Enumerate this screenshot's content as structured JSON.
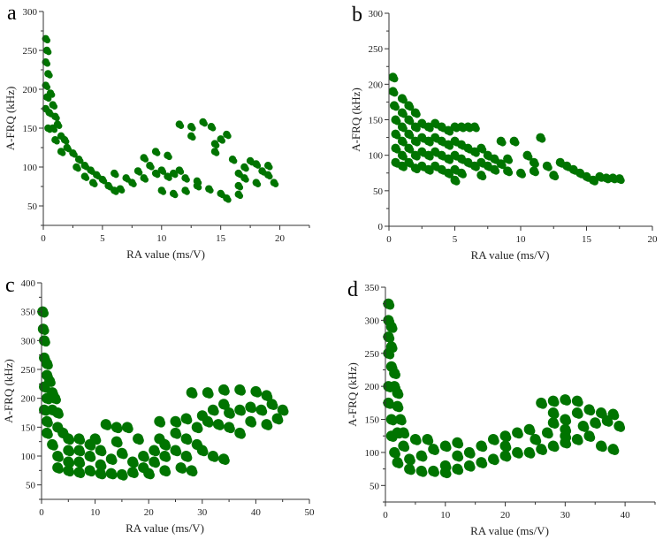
{
  "chart_data": [
    {
      "type": "scatter",
      "panel_label": "a",
      "xlabel": "RA value (ms/V)",
      "ylabel": "A-FRQ (kHz)",
      "xlim": [
        0,
        22.5
      ],
      "ylim": [
        25,
        300
      ],
      "xticks": [
        0,
        5,
        10,
        15,
        20
      ],
      "yticks": [
        50,
        100,
        150,
        200,
        250,
        300
      ],
      "grid": false,
      "color": "#007400",
      "points": [
        [
          0.2,
          265
        ],
        [
          0.3,
          250
        ],
        [
          0.2,
          235
        ],
        [
          0.4,
          220
        ],
        [
          0.2,
          205
        ],
        [
          0.3,
          190
        ],
        [
          0.6,
          195
        ],
        [
          0.2,
          175
        ],
        [
          0.5,
          170
        ],
        [
          0.8,
          180
        ],
        [
          1,
          165
        ],
        [
          0.4,
          150
        ],
        [
          0.8,
          150
        ],
        [
          1.2,
          155
        ],
        [
          1.5,
          140
        ],
        [
          1,
          135
        ],
        [
          1.8,
          135
        ],
        [
          2,
          125
        ],
        [
          1.5,
          120
        ],
        [
          2.5,
          118
        ],
        [
          3,
          110
        ],
        [
          3.5,
          102
        ],
        [
          2.8,
          100
        ],
        [
          4,
          96
        ],
        [
          4.5,
          90
        ],
        [
          3.5,
          88
        ],
        [
          4.2,
          80
        ],
        [
          5,
          84
        ],
        [
          5.5,
          76
        ],
        [
          6,
          70
        ],
        [
          6.5,
          72
        ],
        [
          7,
          86
        ],
        [
          6,
          92
        ],
        [
          7.5,
          80
        ],
        [
          8,
          95
        ],
        [
          8.5,
          112
        ],
        [
          9,
          102
        ],
        [
          9.5,
          92
        ],
        [
          8.5,
          86
        ],
        [
          10,
          96
        ],
        [
          10.5,
          88
        ],
        [
          9.5,
          120
        ],
        [
          10.5,
          115
        ],
        [
          11,
          92
        ],
        [
          11.5,
          96
        ],
        [
          12,
          86
        ],
        [
          13,
          82
        ],
        [
          10,
          70
        ],
        [
          11,
          66
        ],
        [
          12,
          70
        ],
        [
          13,
          76
        ],
        [
          14,
          72
        ],
        [
          15,
          66
        ],
        [
          15.5,
          60
        ],
        [
          16.5,
          65
        ],
        [
          11.5,
          155
        ],
        [
          12.5,
          152
        ],
        [
          13.5,
          158
        ],
        [
          12.5,
          140
        ],
        [
          14.2,
          152
        ],
        [
          14.5,
          130
        ],
        [
          15,
          136
        ],
        [
          15.5,
          142
        ],
        [
          14.5,
          120
        ],
        [
          16,
          110
        ],
        [
          17,
          100
        ],
        [
          17.5,
          108
        ],
        [
          18,
          104
        ],
        [
          18.5,
          95
        ],
        [
          19,
          90
        ],
        [
          19.5,
          80
        ],
        [
          18,
          80
        ],
        [
          17,
          86
        ],
        [
          16.5,
          92
        ],
        [
          19,
          102
        ],
        [
          16.5,
          76
        ]
      ]
    },
    {
      "type": "scatter",
      "panel_label": "b",
      "xlabel": "RA value (ms/V)",
      "ylabel": "A-FRQ (kHz)",
      "xlim": [
        0,
        20
      ],
      "ylim": [
        0,
        300
      ],
      "xticks": [
        0,
        5,
        10,
        15,
        20
      ],
      "yticks": [
        0,
        50,
        100,
        150,
        200,
        250,
        300
      ],
      "grid": false,
      "color": "#007400",
      "points": [
        [
          0.3,
          210
        ],
        [
          0.3,
          190
        ],
        [
          0.4,
          170
        ],
        [
          0.5,
          150
        ],
        [
          0.5,
          130
        ],
        [
          0.5,
          110
        ],
        [
          0.5,
          90
        ],
        [
          1,
          180
        ],
        [
          1,
          160
        ],
        [
          1,
          140
        ],
        [
          1,
          120
        ],
        [
          1,
          100
        ],
        [
          1,
          85
        ],
        [
          1.5,
          170
        ],
        [
          1.5,
          150
        ],
        [
          1.5,
          130
        ],
        [
          1.5,
          110
        ],
        [
          1.5,
          90
        ],
        [
          2,
          160
        ],
        [
          2,
          140
        ],
        [
          2,
          120
        ],
        [
          2,
          100
        ],
        [
          2,
          82
        ],
        [
          2.5,
          145
        ],
        [
          2.5,
          125
        ],
        [
          2.5,
          105
        ],
        [
          2.5,
          85
        ],
        [
          3,
          140
        ],
        [
          3,
          120
        ],
        [
          3,
          100
        ],
        [
          3,
          80
        ],
        [
          3.5,
          145
        ],
        [
          3.5,
          125
        ],
        [
          3.5,
          105
        ],
        [
          3.5,
          85
        ],
        [
          4,
          140
        ],
        [
          4,
          120
        ],
        [
          4,
          100
        ],
        [
          4,
          80
        ],
        [
          4.5,
          135
        ],
        [
          4.5,
          115
        ],
        [
          4.5,
          95
        ],
        [
          4.5,
          75
        ],
        [
          5,
          140
        ],
        [
          5,
          120
        ],
        [
          5,
          100
        ],
        [
          5,
          80
        ],
        [
          5,
          65
        ],
        [
          5.5,
          140
        ],
        [
          5.5,
          115
        ],
        [
          5.5,
          95
        ],
        [
          5.5,
          75
        ],
        [
          6,
          140
        ],
        [
          6,
          110
        ],
        [
          6,
          90
        ],
        [
          6.5,
          140
        ],
        [
          6.5,
          105
        ],
        [
          6.5,
          85
        ],
        [
          7,
          110
        ],
        [
          7,
          90
        ],
        [
          7,
          72
        ],
        [
          7.5,
          100
        ],
        [
          7.5,
          85
        ],
        [
          8,
          95
        ],
        [
          8,
          80
        ],
        [
          8.5,
          120
        ],
        [
          8.5,
          88
        ],
        [
          9,
          95
        ],
        [
          9,
          78
        ],
        [
          9.5,
          120
        ],
        [
          10,
          75
        ],
        [
          10.5,
          100
        ],
        [
          11,
          90
        ],
        [
          11.5,
          125
        ],
        [
          11,
          78
        ],
        [
          12,
          85
        ],
        [
          12.5,
          72
        ],
        [
          13,
          90
        ],
        [
          13.5,
          85
        ],
        [
          14,
          80
        ],
        [
          14.5,
          75
        ],
        [
          15,
          70
        ],
        [
          15.5,
          65
        ],
        [
          16,
          70
        ],
        [
          16.5,
          68
        ],
        [
          17,
          68
        ],
        [
          17.5,
          67
        ]
      ]
    },
    {
      "type": "scatter",
      "panel_label": "c",
      "xlabel": "RA value (ms/V)",
      "ylabel": "A-FRQ (kHz)",
      "xlim": [
        0,
        50
      ],
      "ylim": [
        25,
        400
      ],
      "xticks": [
        0,
        10,
        20,
        30,
        40,
        50
      ],
      "yticks": [
        50,
        100,
        150,
        200,
        250,
        300,
        350,
        400
      ],
      "grid": false,
      "color": "#007400",
      "points": [
        [
          0.2,
          350
        ],
        [
          0.3,
          320
        ],
        [
          0.5,
          300
        ],
        [
          0.5,
          270
        ],
        [
          1,
          260
        ],
        [
          1,
          240
        ],
        [
          0.5,
          220
        ],
        [
          1.5,
          230
        ],
        [
          2,
          210
        ],
        [
          1,
          200
        ],
        [
          2.5,
          200
        ],
        [
          0.5,
          180
        ],
        [
          2,
          180
        ],
        [
          3,
          175
        ],
        [
          1,
          160
        ],
        [
          3,
          150
        ],
        [
          1,
          140
        ],
        [
          4,
          140
        ],
        [
          2,
          120
        ],
        [
          5,
          130
        ],
        [
          7,
          130
        ],
        [
          3,
          100
        ],
        [
          5,
          110
        ],
        [
          7,
          110
        ],
        [
          9,
          120
        ],
        [
          3,
          80
        ],
        [
          5,
          90
        ],
        [
          7,
          90
        ],
        [
          9,
          100
        ],
        [
          11,
          110
        ],
        [
          5,
          75
        ],
        [
          7,
          72
        ],
        [
          9,
          75
        ],
        [
          11,
          85
        ],
        [
          13,
          95
        ],
        [
          15,
          105
        ],
        [
          11,
          70
        ],
        [
          13,
          70
        ],
        [
          15,
          68
        ],
        [
          17,
          72
        ],
        [
          19,
          80
        ],
        [
          21,
          90
        ],
        [
          23,
          100
        ],
        [
          17,
          90
        ],
        [
          19,
          100
        ],
        [
          21,
          110
        ],
        [
          23,
          120
        ],
        [
          25,
          110
        ],
        [
          27,
          100
        ],
        [
          20,
          70
        ],
        [
          23,
          75
        ],
        [
          26,
          80
        ],
        [
          28,
          75
        ],
        [
          12,
          155
        ],
        [
          14,
          150
        ],
        [
          16,
          150
        ],
        [
          10,
          130
        ],
        [
          14,
          125
        ],
        [
          18,
          130
        ],
        [
          22,
          130
        ],
        [
          25,
          140
        ],
        [
          27,
          130
        ],
        [
          29,
          120
        ],
        [
          30,
          110
        ],
        [
          32,
          100
        ],
        [
          34,
          95
        ],
        [
          29,
          150
        ],
        [
          31,
          160
        ],
        [
          33,
          155
        ],
        [
          35,
          150
        ],
        [
          37,
          140
        ],
        [
          39,
          160
        ],
        [
          35,
          175
        ],
        [
          37,
          180
        ],
        [
          39,
          185
        ],
        [
          41,
          180
        ],
        [
          43,
          190
        ],
        [
          45,
          180
        ],
        [
          44,
          165
        ],
        [
          42,
          155
        ],
        [
          32,
          180
        ],
        [
          34,
          190
        ],
        [
          28,
          210
        ],
        [
          31,
          210
        ],
        [
          34,
          215
        ],
        [
          37,
          215
        ],
        [
          40,
          212
        ],
        [
          42,
          205
        ],
        [
          22,
          160
        ],
        [
          25,
          160
        ],
        [
          27,
          165
        ],
        [
          30,
          170
        ]
      ]
    },
    {
      "type": "scatter",
      "panel_label": "d",
      "xlabel": "RA value (ms/V)",
      "ylabel": "A-FRQ (kHz)",
      "xlim": [
        0,
        45
      ],
      "ylim": [
        25,
        350
      ],
      "xticks": [
        0,
        10,
        20,
        30,
        40
      ],
      "yticks": [
        50,
        100,
        150,
        200,
        250,
        300,
        350
      ],
      "grid": false,
      "color": "#007400",
      "points": [
        [
          0.5,
          325
        ],
        [
          0.5,
          300
        ],
        [
          0.5,
          275
        ],
        [
          1,
          290
        ],
        [
          1,
          260
        ],
        [
          0.5,
          250
        ],
        [
          1,
          230
        ],
        [
          1.5,
          220
        ],
        [
          0.5,
          200
        ],
        [
          1.5,
          200
        ],
        [
          2,
          190
        ],
        [
          0.5,
          175
        ],
        [
          2,
          170
        ],
        [
          1,
          150
        ],
        [
          2.5,
          150
        ],
        [
          1,
          125
        ],
        [
          2,
          130
        ],
        [
          3,
          130
        ],
        [
          1.5,
          100
        ],
        [
          3,
          110
        ],
        [
          5,
          120
        ],
        [
          7,
          120
        ],
        [
          2,
          85
        ],
        [
          4,
          90
        ],
        [
          6,
          95
        ],
        [
          8,
          105
        ],
        [
          10,
          110
        ],
        [
          12,
          115
        ],
        [
          4,
          75
        ],
        [
          6,
          72
        ],
        [
          8,
          72
        ],
        [
          10,
          70
        ],
        [
          10,
          80
        ],
        [
          12,
          75
        ],
        [
          14,
          80
        ],
        [
          12,
          95
        ],
        [
          14,
          100
        ],
        [
          16,
          110
        ],
        [
          18,
          120
        ],
        [
          20,
          125
        ],
        [
          22,
          130
        ],
        [
          24,
          135
        ],
        [
          16,
          85
        ],
        [
          18,
          90
        ],
        [
          20,
          95
        ],
        [
          22,
          100
        ],
        [
          24,
          100
        ],
        [
          26,
          105
        ],
        [
          28,
          110
        ],
        [
          30,
          115
        ],
        [
          20,
          110
        ],
        [
          25,
          120
        ],
        [
          27,
          130
        ],
        [
          26,
          175
        ],
        [
          28,
          178
        ],
        [
          30,
          180
        ],
        [
          32,
          178
        ],
        [
          28,
          160
        ],
        [
          30,
          150
        ],
        [
          32,
          160
        ],
        [
          34,
          165
        ],
        [
          36,
          160
        ],
        [
          38,
          158
        ],
        [
          30,
          135
        ],
        [
          33,
          140
        ],
        [
          35,
          145
        ],
        [
          37,
          148
        ],
        [
          39,
          140
        ],
        [
          32,
          120
        ],
        [
          34,
          125
        ],
        [
          36,
          110
        ],
        [
          38,
          105
        ],
        [
          30,
          125
        ],
        [
          28,
          145
        ]
      ]
    }
  ]
}
